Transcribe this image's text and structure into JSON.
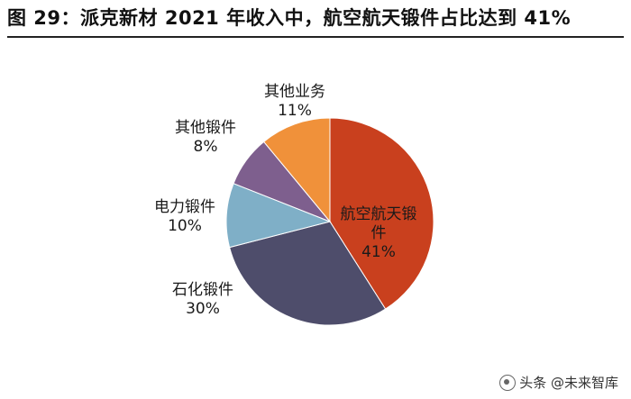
{
  "chart_data": {
    "type": "pie",
    "title": "图 29：派克新材 2021 年收入中，航空航天锻件占比达到 41%",
    "slices": [
      {
        "name": "航空航天锻件",
        "value": 41,
        "label": "41%",
        "color": "#C9401E"
      },
      {
        "name": "石化锻件",
        "value": 30,
        "label": "30%",
        "color": "#4E4D6B"
      },
      {
        "name": "电力锻件",
        "value": 10,
        "label": "10%",
        "color": "#7FAFC7"
      },
      {
        "name": "其他锻件",
        "value": 8,
        "label": "8%",
        "color": "#7E5F8E"
      },
      {
        "name": "其他业务",
        "value": 11,
        "label": "11%",
        "color": "#F0913A"
      }
    ]
  },
  "watermark": {
    "text": "头条 @未来智库"
  }
}
